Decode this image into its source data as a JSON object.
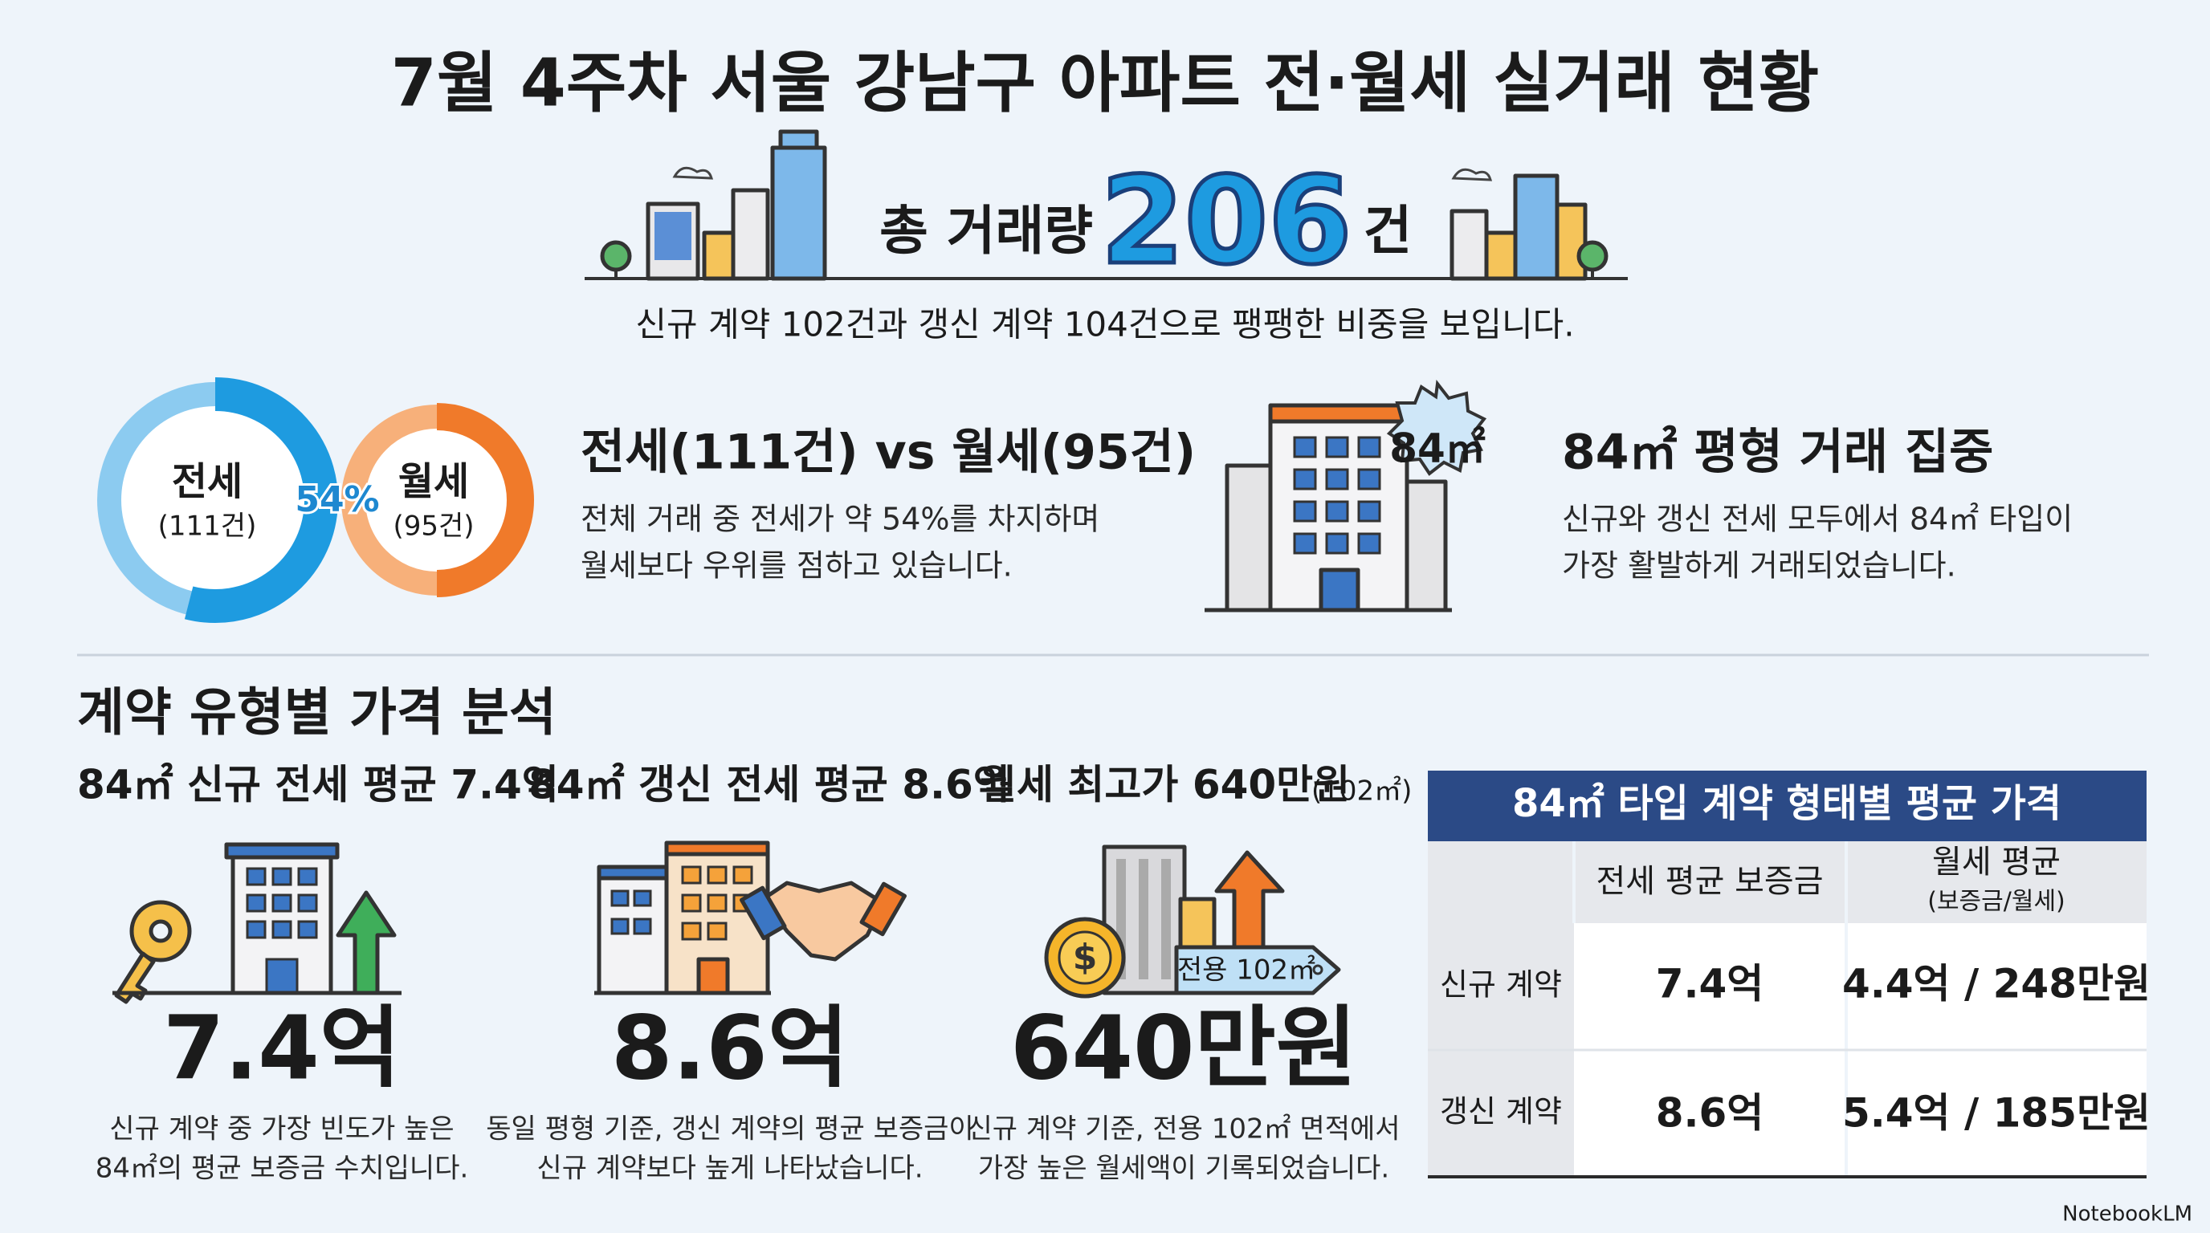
{
  "title": "7월 4주차 서울 강남구 아파트 전·월세 실거래 현황",
  "total": {
    "prefix": "총 거래량",
    "value": "206",
    "suffix": "건"
  },
  "subtitle": "신규 계약 102건과 갱신 계약 104건으로 팽팽한 비중을 보입니다.",
  "split": {
    "jeonse_label": "전세",
    "jeonse_count": "(111건)",
    "wolse_label": "월세",
    "wolse_count": "(95건)",
    "share": {
      "value": 54,
      "label": "54%"
    }
  },
  "highlights": [
    {
      "heading": "전세(111건) vs 월세(95건)",
      "lines": [
        "전체 거래 중 전세가 약 54%를 차지하며",
        "월세보다 우위를 점하고 있습니다."
      ]
    },
    {
      "badge": "84㎡",
      "heading": "84㎡ 평형 거래 집중",
      "lines": [
        "신규와 갱신 전세 모두에서 84㎡ 타입이",
        "가장 활발하게 거래되었습니다."
      ]
    }
  ],
  "section_title": "계약 유형별 가격 분석",
  "cards": [
    {
      "heading": "84㎡ 신규 전세 평균 7.4억",
      "value": "7.4억",
      "lines": [
        "신규 계약 중 가장 빈도가 높은",
        "84㎡의 평균 보증금 수치입니다."
      ]
    },
    {
      "heading": "84㎡ 갱신 전세 평균 8.6억",
      "value": "8.6억",
      "lines": [
        "동일 평형 기준, 갱신 계약의 평균 보증금이",
        "신규 계약보다 높게 나타났습니다."
      ]
    },
    {
      "heading": "월세 최고가 640만원",
      "heading_note": "(102㎡)",
      "sign": "전용 102㎡",
      "value": "640만원",
      "lines": [
        "신규 계약 기준, 전용 102㎡ 면적에서",
        "가장 높은 월세액이 기록되었습니다."
      ]
    }
  ],
  "table": {
    "title": "84㎡ 타입 계약 형태별 평균 가격",
    "columns": [
      {
        "title": "전세 평균 보증금"
      },
      {
        "title": "월세 평균",
        "note": "(보증금/월세)"
      }
    ],
    "rows": [
      [
        "신규 계약",
        "7.4억",
        "4.4억 / 248만원"
      ],
      [
        "갱신 계약",
        "8.6억",
        "5.4억 / 185만원"
      ]
    ]
  },
  "footer": "NotebookLM"
}
